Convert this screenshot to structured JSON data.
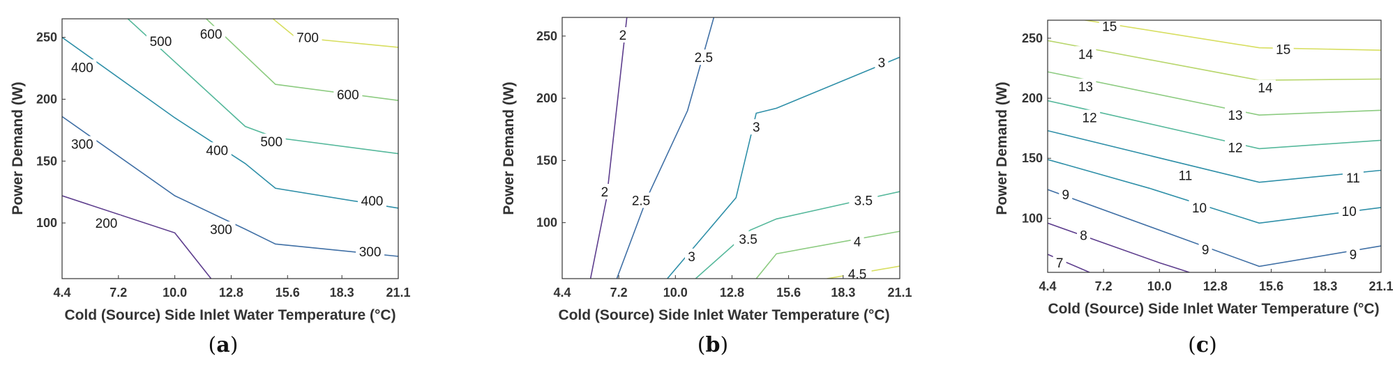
{
  "figure": {
    "panels": [
      {
        "caption_letter": "a"
      },
      {
        "caption_letter": "b"
      },
      {
        "caption_letter": "c"
      }
    ]
  },
  "chart_data": [
    {
      "type": "contour",
      "panel": "a",
      "xlabel": "Cold (Source) Side Inlet Water Temperature (°C)",
      "ylabel": "Power Demand (W)",
      "x_ticks": [
        "4.4",
        "7.2",
        "10.0",
        "12.8",
        "15.6",
        "18.3",
        "21.1"
      ],
      "y_ticks": [
        "100",
        "150",
        "200",
        "250"
      ],
      "xlim": [
        4.4,
        21.1
      ],
      "ylim": [
        55,
        265
      ],
      "contours": [
        {
          "level": 200,
          "label": "200",
          "color": "#5d3d8d",
          "points": [
            [
              4.4,
              122
            ],
            [
              10,
              92
            ],
            [
              11.8,
              55
            ]
          ],
          "labels": [
            [
              6.6,
              100
            ]
          ]
        },
        {
          "level": 300,
          "label": "300",
          "color": "#3f6fa5",
          "points": [
            [
              4.4,
              186
            ],
            [
              10,
              122
            ],
            [
              13.5,
              95
            ],
            [
              15,
              83
            ],
            [
              21.1,
              73
            ]
          ],
          "labels": [
            [
              5.4,
              164
            ],
            [
              12.3,
              95
            ],
            [
              19.7,
              77
            ]
          ]
        },
        {
          "level": 400,
          "label": "400",
          "color": "#2e8fa8",
          "points": [
            [
              4.4,
              250
            ],
            [
              10,
              185
            ],
            [
              13.5,
              148
            ],
            [
              15,
              128
            ],
            [
              21.1,
              112
            ]
          ],
          "labels": [
            [
              5.4,
              226
            ],
            [
              12.1,
              159
            ],
            [
              19.8,
              118
            ]
          ]
        },
        {
          "level": 500,
          "label": "500",
          "color": "#55b89b",
          "points": [
            [
              7.6,
              266
            ],
            [
              13.5,
              178
            ],
            [
              15,
              169
            ],
            [
              21.1,
              156
            ]
          ],
          "labels": [
            [
              9.3,
              247
            ],
            [
              14.8,
              166
            ]
          ]
        },
        {
          "level": 600,
          "label": "600",
          "color": "#8ccb80",
          "points": [
            [
              11.5,
              266
            ],
            [
              15,
              212
            ],
            [
              21.1,
              199
            ]
          ],
          "labels": [
            [
              11.8,
              253
            ],
            [
              18.6,
              204
            ]
          ]
        },
        {
          "level": 700,
          "label": "700",
          "color": "#d7de5f",
          "points": [
            [
              14.8,
              266
            ],
            [
              16,
              250
            ],
            [
              21.1,
              242
            ]
          ],
          "labels": [
            [
              16.6,
              250
            ]
          ]
        }
      ]
    },
    {
      "type": "contour",
      "panel": "b",
      "xlabel": "Cold (Source) Side Inlet Water Temperature (°C)",
      "ylabel": "Power Demand (W)",
      "x_ticks": [
        "4.4",
        "7.2",
        "10.0",
        "12.8",
        "15.6",
        "18.3",
        "21.1"
      ],
      "y_ticks": [
        "100",
        "150",
        "200",
        "250"
      ],
      "xlim": [
        4.4,
        21.1
      ],
      "ylim": [
        55,
        265
      ],
      "contours": [
        {
          "level": 2,
          "label": "2",
          "color": "#5d3d8d",
          "points": [
            [
              5.8,
              55
            ],
            [
              6.6,
              120
            ],
            [
              7.6,
              265
            ]
          ],
          "labels": [
            [
              6.5,
              125
            ],
            [
              7.4,
              251
            ]
          ]
        },
        {
          "level": 2.5,
          "label": "2.5",
          "color": "#3f6fa5",
          "points": [
            [
              7.1,
              55
            ],
            [
              8.6,
              120
            ],
            [
              10.6,
              190
            ],
            [
              11.9,
              265
            ]
          ],
          "labels": [
            [
              8.3,
              118
            ],
            [
              11.4,
              233
            ]
          ]
        },
        {
          "level": 3,
          "label": "3",
          "color": "#2e8fa8",
          "points": [
            [
              9.6,
              55
            ],
            [
              13,
              120
            ],
            [
              14,
              188
            ],
            [
              15,
              192
            ],
            [
              21.1,
              233
            ]
          ],
          "labels": [
            [
              10.8,
              73
            ],
            [
              14,
              177
            ],
            [
              20.2,
              229
            ]
          ]
        },
        {
          "level": 3.5,
          "label": "3.5",
          "color": "#55b89b",
          "points": [
            [
              11,
              55
            ],
            [
              13.7,
              94
            ],
            [
              15,
              103
            ],
            [
              21.1,
              125
            ]
          ],
          "labels": [
            [
              13.6,
              87
            ],
            [
              19.3,
              118
            ]
          ]
        },
        {
          "level": 4,
          "label": "4",
          "color": "#8ccb80",
          "points": [
            [
              14,
              55
            ],
            [
              15,
              75
            ],
            [
              21.1,
              93
            ]
          ],
          "labels": [
            [
              19,
              85
            ]
          ]
        },
        {
          "level": 4.5,
          "label": "4.5",
          "color": "#d7de5f",
          "points": [
            [
              17.5,
              55
            ],
            [
              21.1,
              65
            ]
          ],
          "labels": [
            [
              19,
              59
            ]
          ]
        }
      ]
    },
    {
      "type": "contour",
      "panel": "c",
      "xlabel": "Cold (Source) Side Inlet Water Temperature (°C)",
      "ylabel": "Power Demand (W)",
      "x_ticks": [
        "4.4",
        "7.2",
        "10.0",
        "12.8",
        "15.6",
        "18.3",
        "21.1"
      ],
      "y_ticks": [
        "100",
        "150",
        "200",
        "250"
      ],
      "xlim": [
        4.4,
        21.1
      ],
      "ylim": [
        55,
        265
      ],
      "contours": [
        {
          "level": 7,
          "label": "7",
          "color": "#5d3d8d",
          "points": [
            [
              4.4,
              70
            ],
            [
              6.5,
              55
            ]
          ],
          "labels": [
            [
              5,
              63
            ]
          ]
        },
        {
          "level": 8,
          "label": "8",
          "color": "#5d3d8d",
          "points": [
            [
              4.4,
              96
            ],
            [
              10,
              63
            ],
            [
              11.5,
              55
            ]
          ],
          "labels": [
            [
              6.2,
              86
            ]
          ]
        },
        {
          "level": 9,
          "label": "9",
          "color": "#3f6fa5",
          "points": [
            [
              4.4,
              124
            ],
            [
              15,
              60
            ],
            [
              21.1,
              77
            ]
          ],
          "labels": [
            [
              5.3,
              120
            ],
            [
              12.3,
              74
            ],
            [
              19.7,
              70
            ]
          ]
        },
        {
          "level": 10,
          "label": "10",
          "color": "#2e8fa8",
          "points": [
            [
              4.4,
              149
            ],
            [
              9.5,
              125
            ],
            [
              15,
              96
            ],
            [
              21.1,
              109
            ]
          ],
          "labels": [
            [
              12,
              109
            ],
            [
              19.5,
              106
            ]
          ]
        },
        {
          "level": 11,
          "label": "11",
          "color": "#2e8fa8",
          "points": [
            [
              4.4,
              173
            ],
            [
              15,
              130
            ],
            [
              21.1,
              140
            ]
          ],
          "labels": [
            [
              11.3,
              136
            ],
            [
              19.7,
              134
            ]
          ]
        },
        {
          "level": 12,
          "label": "12",
          "color": "#55b89b",
          "points": [
            [
              4.4,
              198
            ],
            [
              15,
              158
            ],
            [
              21.1,
              165
            ]
          ],
          "labels": [
            [
              6.5,
              184
            ],
            [
              13.8,
              159
            ]
          ]
        },
        {
          "level": 13,
          "label": "13",
          "color": "#8ccb80",
          "points": [
            [
              4.4,
              222
            ],
            [
              15,
              186
            ],
            [
              21.1,
              190
            ]
          ],
          "labels": [
            [
              6.3,
              210
            ],
            [
              13.8,
              186
            ]
          ]
        },
        {
          "level": 14,
          "label": "14",
          "color": "#b8d66c",
          "points": [
            [
              4.4,
              248
            ],
            [
              15,
              215
            ],
            [
              21.1,
              216
            ]
          ],
          "labels": [
            [
              6.3,
              237
            ],
            [
              15.3,
              209
            ]
          ]
        },
        {
          "level": 15,
          "label": "15",
          "color": "#d7de5f",
          "points": [
            [
              4.4,
              270
            ],
            [
              15,
              242
            ],
            [
              21.1,
              240
            ]
          ],
          "labels": [
            [
              7.5,
              260
            ],
            [
              16.2,
              241
            ]
          ]
        }
      ]
    }
  ]
}
